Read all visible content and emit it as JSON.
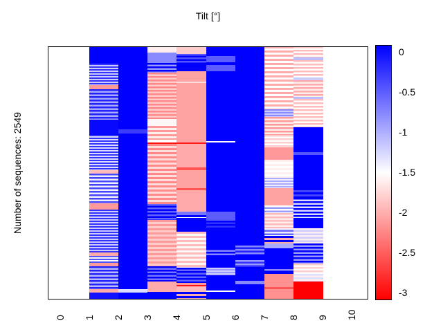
{
  "chart_data": {
    "type": "heatmap",
    "title": "Tilt [°]",
    "ylabel": "Number of sequences: 2549",
    "num_sequences": 2549,
    "xlim": [
      -0.43,
      10.57
    ],
    "x_ticks": [
      "0",
      "1",
      "2",
      "3",
      "4",
      "5",
      "6",
      "7",
      "8",
      "9",
      "10"
    ],
    "grid": false,
    "colorbar": {
      "position": "right",
      "min": -3,
      "max": 0,
      "ticks": [
        "0",
        "-0.5",
        "-1",
        "-1.5",
        "-2",
        "-2.5",
        "-3"
      ],
      "tick_values": [
        0,
        -0.5,
        -1,
        -1.5,
        -2,
        -2.5,
        -3
      ],
      "color_max": "#0000ff",
      "color_mid": "#ffffff",
      "color_min": "#ff0000"
    },
    "columns": [
      {
        "x0": 1,
        "x1": 2,
        "segments": [
          [
            0.0,
            0.07,
            0,
            null,
            0
          ],
          [
            0.07,
            0.155,
            -0.3,
            -1.2,
            4
          ],
          [
            0.155,
            0.17,
            -2.1,
            null,
            0
          ],
          [
            0.17,
            0.29,
            -0.2,
            -1.0,
            5
          ],
          [
            0.29,
            0.35,
            -0.05,
            null,
            0
          ],
          [
            0.35,
            0.49,
            -0.3,
            -1.3,
            4
          ],
          [
            0.49,
            0.505,
            -1.9,
            null,
            0
          ],
          [
            0.505,
            0.62,
            -0.4,
            -1.4,
            5
          ],
          [
            0.62,
            0.645,
            -2.1,
            null,
            0
          ],
          [
            0.645,
            0.815,
            -0.3,
            -1.2,
            4
          ],
          [
            0.815,
            0.83,
            -2.0,
            null,
            0
          ],
          [
            0.83,
            0.855,
            -0.5,
            -1.5,
            4
          ],
          [
            0.855,
            0.87,
            -2.1,
            null,
            0
          ],
          [
            0.87,
            0.96,
            -0.2,
            -1.1,
            5
          ],
          [
            0.96,
            0.975,
            -2.0,
            null,
            0
          ],
          [
            0.975,
            1.0,
            -0.1,
            null,
            0
          ]
        ]
      },
      {
        "x0": 2,
        "x1": 3,
        "segments": [
          [
            0.0,
            0.33,
            0,
            null,
            0
          ],
          [
            0.33,
            0.345,
            -0.35,
            null,
            0
          ],
          [
            0.345,
            0.96,
            0,
            null,
            0
          ],
          [
            0.96,
            0.973,
            -1.3,
            null,
            0
          ],
          [
            0.973,
            1.0,
            0,
            null,
            0
          ]
        ]
      },
      {
        "x0": 3,
        "x1": 4,
        "segments": [
          [
            0.0,
            0.027,
            -1.6,
            null,
            0
          ],
          [
            0.027,
            0.068,
            -0.8,
            null,
            0
          ],
          [
            0.068,
            0.105,
            0,
            -0.9,
            5
          ],
          [
            0.105,
            0.287,
            -2.2,
            -1.8,
            5
          ],
          [
            0.287,
            0.314,
            -1.55,
            null,
            0
          ],
          [
            0.314,
            0.369,
            -2.1,
            -1.6,
            6
          ],
          [
            0.369,
            0.38,
            -1.5,
            null,
            0
          ],
          [
            0.38,
            0.387,
            -2.9,
            null,
            0
          ],
          [
            0.387,
            0.624,
            -2.2,
            -1.7,
            6
          ],
          [
            0.624,
            0.688,
            -0.6,
            0,
            5
          ],
          [
            0.688,
            0.87,
            -2.1,
            -1.8,
            6
          ],
          [
            0.87,
            0.93,
            0,
            -0.7,
            5
          ],
          [
            0.93,
            0.97,
            -2.0,
            null,
            0
          ],
          [
            0.97,
            1.0,
            0,
            null,
            0
          ]
        ]
      },
      {
        "x0": 4,
        "x1": 5,
        "segments": [
          [
            0.0,
            0.03,
            -1.8,
            null,
            0
          ],
          [
            0.03,
            0.073,
            -0.5,
            0,
            5
          ],
          [
            0.073,
            0.1,
            0,
            null,
            0
          ],
          [
            0.1,
            0.14,
            -2.05,
            null,
            0
          ],
          [
            0.14,
            0.147,
            -1.7,
            null,
            0
          ],
          [
            0.147,
            0.38,
            -2.05,
            null,
            0
          ],
          [
            0.38,
            0.387,
            -2.85,
            null,
            0
          ],
          [
            0.387,
            0.48,
            -2.0,
            null,
            0
          ],
          [
            0.48,
            0.49,
            -2.5,
            null,
            0
          ],
          [
            0.49,
            0.56,
            -2.05,
            null,
            0
          ],
          [
            0.56,
            0.57,
            -2.5,
            null,
            0
          ],
          [
            0.57,
            0.655,
            -2.0,
            null,
            0
          ],
          [
            0.655,
            0.668,
            -0.7,
            null,
            0
          ],
          [
            0.668,
            0.675,
            0,
            null,
            0
          ],
          [
            0.675,
            0.68,
            -1.5,
            null,
            0
          ],
          [
            0.68,
            0.733,
            0,
            null,
            0
          ],
          [
            0.733,
            0.875,
            -1.9,
            -1.55,
            6
          ],
          [
            0.875,
            0.935,
            0,
            -0.6,
            5
          ],
          [
            0.935,
            0.943,
            -2.1,
            null,
            0
          ],
          [
            0.943,
            0.95,
            -2.9,
            null,
            0
          ],
          [
            0.95,
            0.97,
            -1.9,
            null,
            0
          ],
          [
            0.97,
            1.0,
            0,
            -2.0,
            6
          ]
        ]
      },
      {
        "x0": 5,
        "x1": 6,
        "segments": [
          [
            0.0,
            0.04,
            0,
            null,
            0
          ],
          [
            0.04,
            0.065,
            -0.55,
            null,
            0
          ],
          [
            0.065,
            0.075,
            0,
            null,
            0
          ],
          [
            0.075,
            0.1,
            -0.55,
            null,
            0
          ],
          [
            0.1,
            0.375,
            0,
            null,
            0
          ],
          [
            0.375,
            0.382,
            -1.5,
            null,
            0
          ],
          [
            0.382,
            0.655,
            0,
            null,
            0
          ],
          [
            0.655,
            0.69,
            -0.55,
            null,
            0
          ],
          [
            0.69,
            0.72,
            0,
            -0.3,
            5
          ],
          [
            0.72,
            0.8,
            0,
            null,
            0
          ],
          [
            0.8,
            0.83,
            0,
            -0.8,
            5
          ],
          [
            0.83,
            0.875,
            0,
            null,
            0
          ],
          [
            0.875,
            0.905,
            -1.2,
            -0.9,
            4
          ],
          [
            0.905,
            0.965,
            0,
            null,
            0
          ],
          [
            0.965,
            0.972,
            -1.5,
            null,
            0
          ],
          [
            0.972,
            1.0,
            0,
            null,
            0
          ]
        ]
      },
      {
        "x0": 6,
        "x1": 7,
        "segments": [
          [
            0.0,
            0.787,
            0,
            null,
            0
          ],
          [
            0.787,
            0.824,
            -0.8,
            -0.2,
            5
          ],
          [
            0.824,
            0.846,
            0,
            null,
            0
          ],
          [
            0.846,
            0.874,
            -0.9,
            -0.3,
            5
          ],
          [
            0.874,
            0.928,
            0,
            null,
            0
          ],
          [
            0.928,
            0.942,
            -0.8,
            null,
            0
          ],
          [
            0.942,
            1.0,
            0,
            null,
            0
          ]
        ]
      },
      {
        "x0": 7,
        "x1": 8,
        "segments": [
          [
            0.0,
            0.25,
            -2.0,
            -1.5,
            6
          ],
          [
            0.25,
            0.28,
            -0.8,
            -1.2,
            4
          ],
          [
            0.28,
            0.35,
            -2.1,
            -1.6,
            5
          ],
          [
            0.35,
            0.4,
            -1.8,
            -1.5,
            5
          ],
          [
            0.4,
            0.45,
            -2.1,
            null,
            0
          ],
          [
            0.45,
            0.52,
            -1.6,
            -1.5,
            6
          ],
          [
            0.52,
            0.56,
            -1.0,
            -1.4,
            4
          ],
          [
            0.56,
            0.63,
            -2.05,
            null,
            0
          ],
          [
            0.63,
            0.66,
            -1.5,
            -0.9,
            5
          ],
          [
            0.66,
            0.72,
            -1.9,
            -1.6,
            5
          ],
          [
            0.72,
            0.75,
            -1.4,
            -0.6,
            5
          ],
          [
            0.75,
            0.78,
            0,
            -2.0,
            6
          ],
          [
            0.78,
            0.8,
            -1.0,
            null,
            0
          ],
          [
            0.8,
            0.875,
            0,
            null,
            0
          ],
          [
            0.875,
            0.885,
            0,
            -1.4,
            5
          ],
          [
            0.885,
            0.9,
            0,
            null,
            0
          ],
          [
            0.9,
            0.953,
            -2.15,
            null,
            0
          ],
          [
            0.953,
            0.96,
            -2.5,
            null,
            0
          ],
          [
            0.96,
            1.0,
            -2.15,
            null,
            0
          ]
        ]
      },
      {
        "x0": 8,
        "x1": 9,
        "segments": [
          [
            0.0,
            0.045,
            -1.9,
            -1.5,
            5
          ],
          [
            0.045,
            0.055,
            -1.1,
            null,
            0
          ],
          [
            0.055,
            0.125,
            -1.9,
            -1.5,
            5
          ],
          [
            0.125,
            0.135,
            -1.2,
            null,
            0
          ],
          [
            0.135,
            0.2,
            -2.0,
            -1.6,
            5
          ],
          [
            0.2,
            0.21,
            -1.1,
            null,
            0
          ],
          [
            0.21,
            0.32,
            -1.9,
            -1.5,
            5
          ],
          [
            0.32,
            0.42,
            0,
            null,
            0
          ],
          [
            0.42,
            0.43,
            -0.5,
            null,
            0
          ],
          [
            0.43,
            0.56,
            0,
            null,
            0
          ],
          [
            0.56,
            0.6,
            0,
            -0.4,
            6
          ],
          [
            0.6,
            0.68,
            0,
            -1.3,
            5
          ],
          [
            0.68,
            0.72,
            0,
            null,
            0
          ],
          [
            0.72,
            0.78,
            -1.6,
            -1.2,
            5
          ],
          [
            0.78,
            0.86,
            0,
            -0.9,
            5
          ],
          [
            0.86,
            0.9,
            -1.8,
            -1.5,
            5
          ],
          [
            0.9,
            0.93,
            -1.3,
            -1.6,
            5
          ],
          [
            0.93,
            1.0,
            -3,
            null,
            0
          ]
        ]
      }
    ]
  }
}
